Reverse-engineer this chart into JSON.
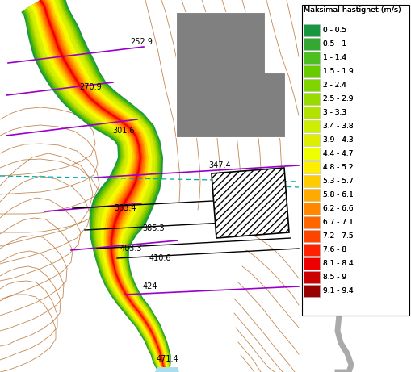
{
  "title": "Maksimal hastighet (m/s)",
  "legend_entries": [
    {
      "label": "0 - 0.5",
      "color": "#1a9641"
    },
    {
      "label": "0.5 - 1",
      "color": "#33a832"
    },
    {
      "label": "1 - 1.4",
      "color": "#4dbf22"
    },
    {
      "label": "1.5 - 1.9",
      "color": "#66cc00"
    },
    {
      "label": "2 - 2.4",
      "color": "#80d400"
    },
    {
      "label": "2.5 - 2.9",
      "color": "#99db00"
    },
    {
      "label": "3 - 3.3",
      "color": "#b3e200"
    },
    {
      "label": "3.4 - 3.8",
      "color": "#ccee00"
    },
    {
      "label": "3.9 - 4.3",
      "color": "#ddee00"
    },
    {
      "label": "4.4 - 4.7",
      "color": "#eeff00"
    },
    {
      "label": "4.8 - 5.2",
      "color": "#ffee00"
    },
    {
      "label": "5.3 - 5.7",
      "color": "#ffcc00"
    },
    {
      "label": "5.8 - 6.1",
      "color": "#ffaa00"
    },
    {
      "label": "6.2 - 6.6",
      "color": "#ff8800"
    },
    {
      "label": "6.7 - 7.1",
      "color": "#ff6600"
    },
    {
      "label": "7.2 - 7.5",
      "color": "#ff4400"
    },
    {
      "label": "7.6 - 8",
      "color": "#ff2200"
    },
    {
      "label": "8.1 - 8.4",
      "color": "#ee0000"
    },
    {
      "label": "8.5 - 9",
      "color": "#cc0000"
    },
    {
      "label": "9.1 - 9.4",
      "color": "#990000"
    }
  ],
  "background_color": "#ffffff",
  "contour_color": "#b87333",
  "cross_section_color": "#9900cc",
  "building_color": "#808080",
  "numbers": [
    "252.9",
    "270.9",
    "301.6",
    "347.4",
    "363.4",
    "385.3",
    "403.3",
    "410.6",
    "424",
    "471.4"
  ]
}
